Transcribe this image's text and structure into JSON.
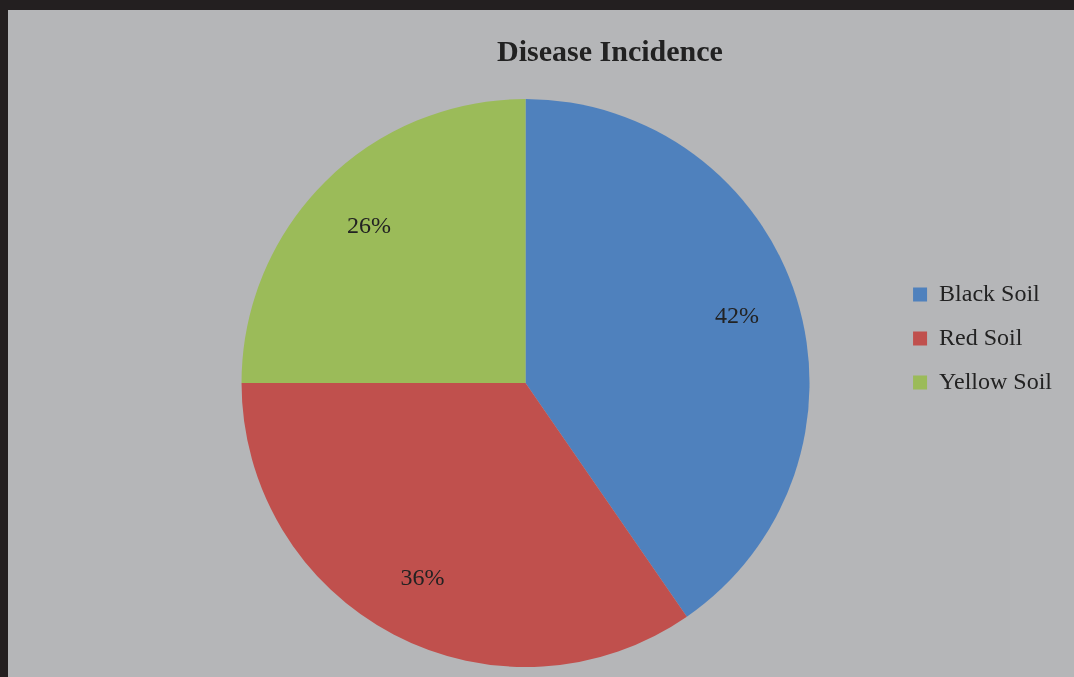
{
  "chart_data": {
    "type": "pie",
    "title": "Disease Incidence",
    "categories": [
      "Black Soil",
      "Red Soil",
      "Yellow Soil"
    ],
    "values": [
      42,
      36,
      26
    ],
    "colors": [
      "#4f81bd",
      "#c0504d",
      "#9bbb59"
    ],
    "value_labels": [
      "42%",
      "36%",
      "26%"
    ],
    "legend": "right"
  }
}
